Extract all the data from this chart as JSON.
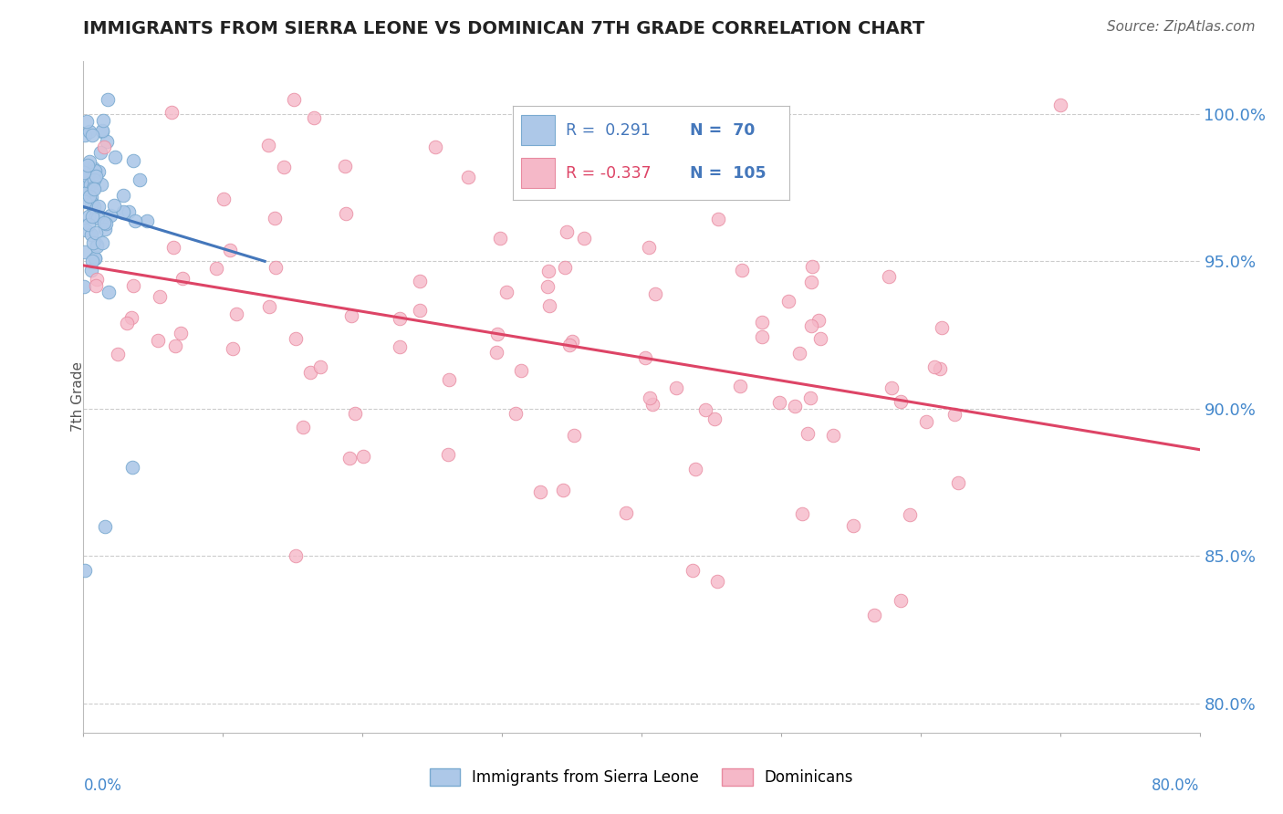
{
  "title": "IMMIGRANTS FROM SIERRA LEONE VS DOMINICAN 7TH GRADE CORRELATION CHART",
  "source": "Source: ZipAtlas.com",
  "ylabel": "7th Grade",
  "right_ytick_labels": [
    "100.0%",
    "95.0%",
    "90.0%",
    "85.0%",
    "80.0%"
  ],
  "right_ytick_vals": [
    100.0,
    95.0,
    90.0,
    85.0,
    80.0
  ],
  "xmin": 0.0,
  "xmax": 80.0,
  "ymin": 79.0,
  "ymax": 101.8,
  "blue_R": 0.291,
  "blue_N": 70,
  "pink_R": -0.337,
  "pink_N": 105,
  "blue_color": "#adc8e8",
  "blue_edge": "#7aaad0",
  "pink_color": "#f5b8c8",
  "pink_edge": "#e88aa0",
  "blue_line_color": "#4477bb",
  "pink_line_color": "#dd4466",
  "grid_color": "#cccccc",
  "title_color": "#222222",
  "right_label_color": "#4488cc",
  "legend_border_color": "#bbbbbb",
  "seed_blue": 7,
  "seed_pink": 99
}
